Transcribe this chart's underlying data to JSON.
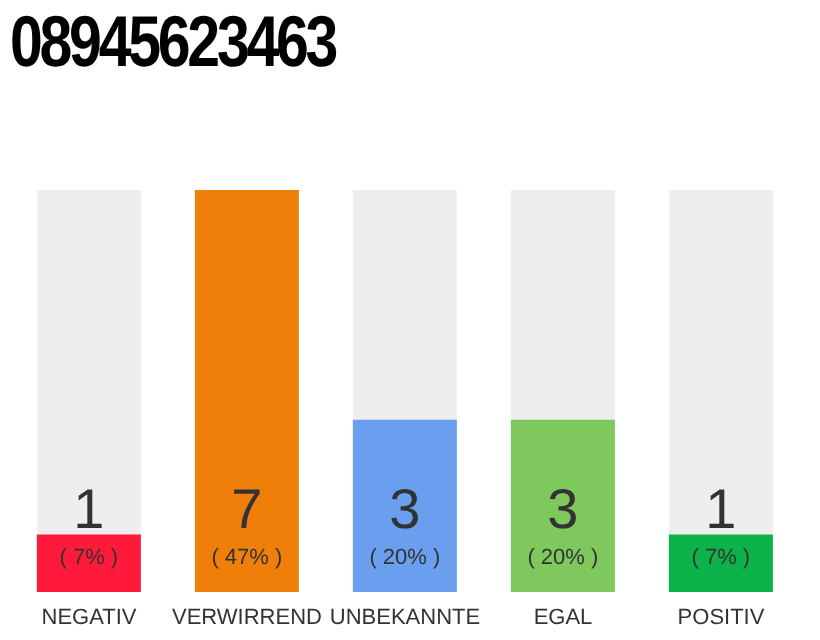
{
  "chart_data": {
    "type": "bar",
    "title": "08945623463",
    "categories": [
      "NEGATIV",
      "VERWIRREND",
      "UNBEKANNTE",
      "EGAL",
      "POSITIV"
    ],
    "values": [
      1,
      7,
      3,
      3,
      1
    ],
    "colors": [
      "#ff1a3c",
      "#f07f0a",
      "#6a9ff0",
      "#7ec85e",
      "#0db34a"
    ],
    "value_labels": [
      "1\n( 7% )",
      "7\n( 47% )",
      "3\n( 20% )",
      "3\n( 20% )",
      "1\n( 7% )"
    ],
    "grid": false,
    "legend": false
  }
}
